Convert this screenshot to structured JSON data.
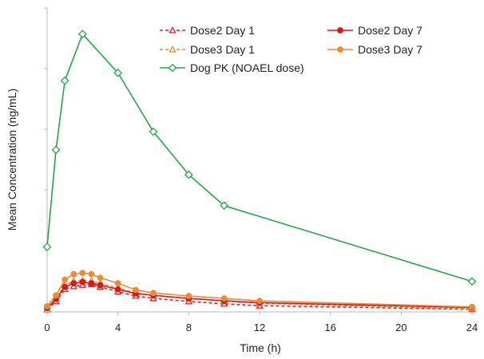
{
  "chart_data": {
    "type": "line",
    "xlabel": "Time (h)",
    "ylabel": "Mean Concentration (ng/mL)",
    "xlim": [
      0,
      24
    ],
    "ylim": [
      0,
      50
    ],
    "x_ticks": [
      0,
      4,
      8,
      12,
      16,
      20,
      24
    ],
    "y_tick_labels_shown": false,
    "grid": false,
    "legend_position": "top-right",
    "series": [
      {
        "name": "Dose2 Day 1",
        "color": "#e02020",
        "dash": true,
        "marker": "triangle-open",
        "x": [
          0,
          0.5,
          1,
          1.5,
          2,
          2.5,
          3,
          4,
          5,
          6,
          8,
          10,
          12,
          24
        ],
        "y": [
          0.3,
          1.6,
          3.6,
          4.1,
          4.3,
          4.4,
          4.0,
          3.2,
          2.5,
          2.1,
          1.6,
          1.2,
          0.9,
          0.3
        ]
      },
      {
        "name": "Dose3 Day 1",
        "color": "#ee8a33",
        "dash": true,
        "marker": "triangle-open",
        "x": [
          0,
          0.5,
          1,
          1.5,
          2,
          2.5,
          3,
          4,
          5,
          6,
          8,
          10,
          12,
          24
        ],
        "y": [
          0.2,
          2.2,
          4.3,
          5.0,
          5.1,
          5.0,
          4.6,
          3.8,
          3.0,
          2.6,
          2.1,
          1.7,
          1.3,
          0.4
        ]
      },
      {
        "name": "Dose2 Day 7",
        "color": "#d81818",
        "dash": false,
        "marker": "circle-filled",
        "x": [
          0,
          0.5,
          1,
          1.5,
          2,
          2.5,
          3,
          4,
          5,
          6,
          8,
          10,
          12,
          24
        ],
        "y": [
          0.5,
          2.0,
          4.0,
          4.6,
          4.8,
          4.6,
          4.3,
          3.6,
          2.9,
          2.6,
          2.1,
          1.7,
          1.4,
          0.6
        ]
      },
      {
        "name": "Dose3 Day 7",
        "color": "#ee8a33",
        "dash": false,
        "marker": "circle-filled",
        "x": [
          0,
          0.5,
          1,
          1.5,
          2,
          2.5,
          3,
          4,
          5,
          6,
          8,
          10,
          12,
          24
        ],
        "y": [
          0.8,
          2.6,
          5.2,
          6.1,
          6.3,
          6.1,
          5.5,
          4.6,
          3.5,
          3.0,
          2.5,
          2.1,
          1.7,
          0.7
        ]
      },
      {
        "name": "Dog PK (NOAEL dose)",
        "color": "#22a845",
        "dash": false,
        "marker": "diamond-open",
        "x": [
          0,
          0.5,
          1,
          2,
          4,
          6,
          8,
          10,
          24
        ],
        "y": [
          10.6,
          26.6,
          38.0,
          45.7,
          39.3,
          29.6,
          22.5,
          17.4,
          4.9
        ]
      }
    ]
  }
}
